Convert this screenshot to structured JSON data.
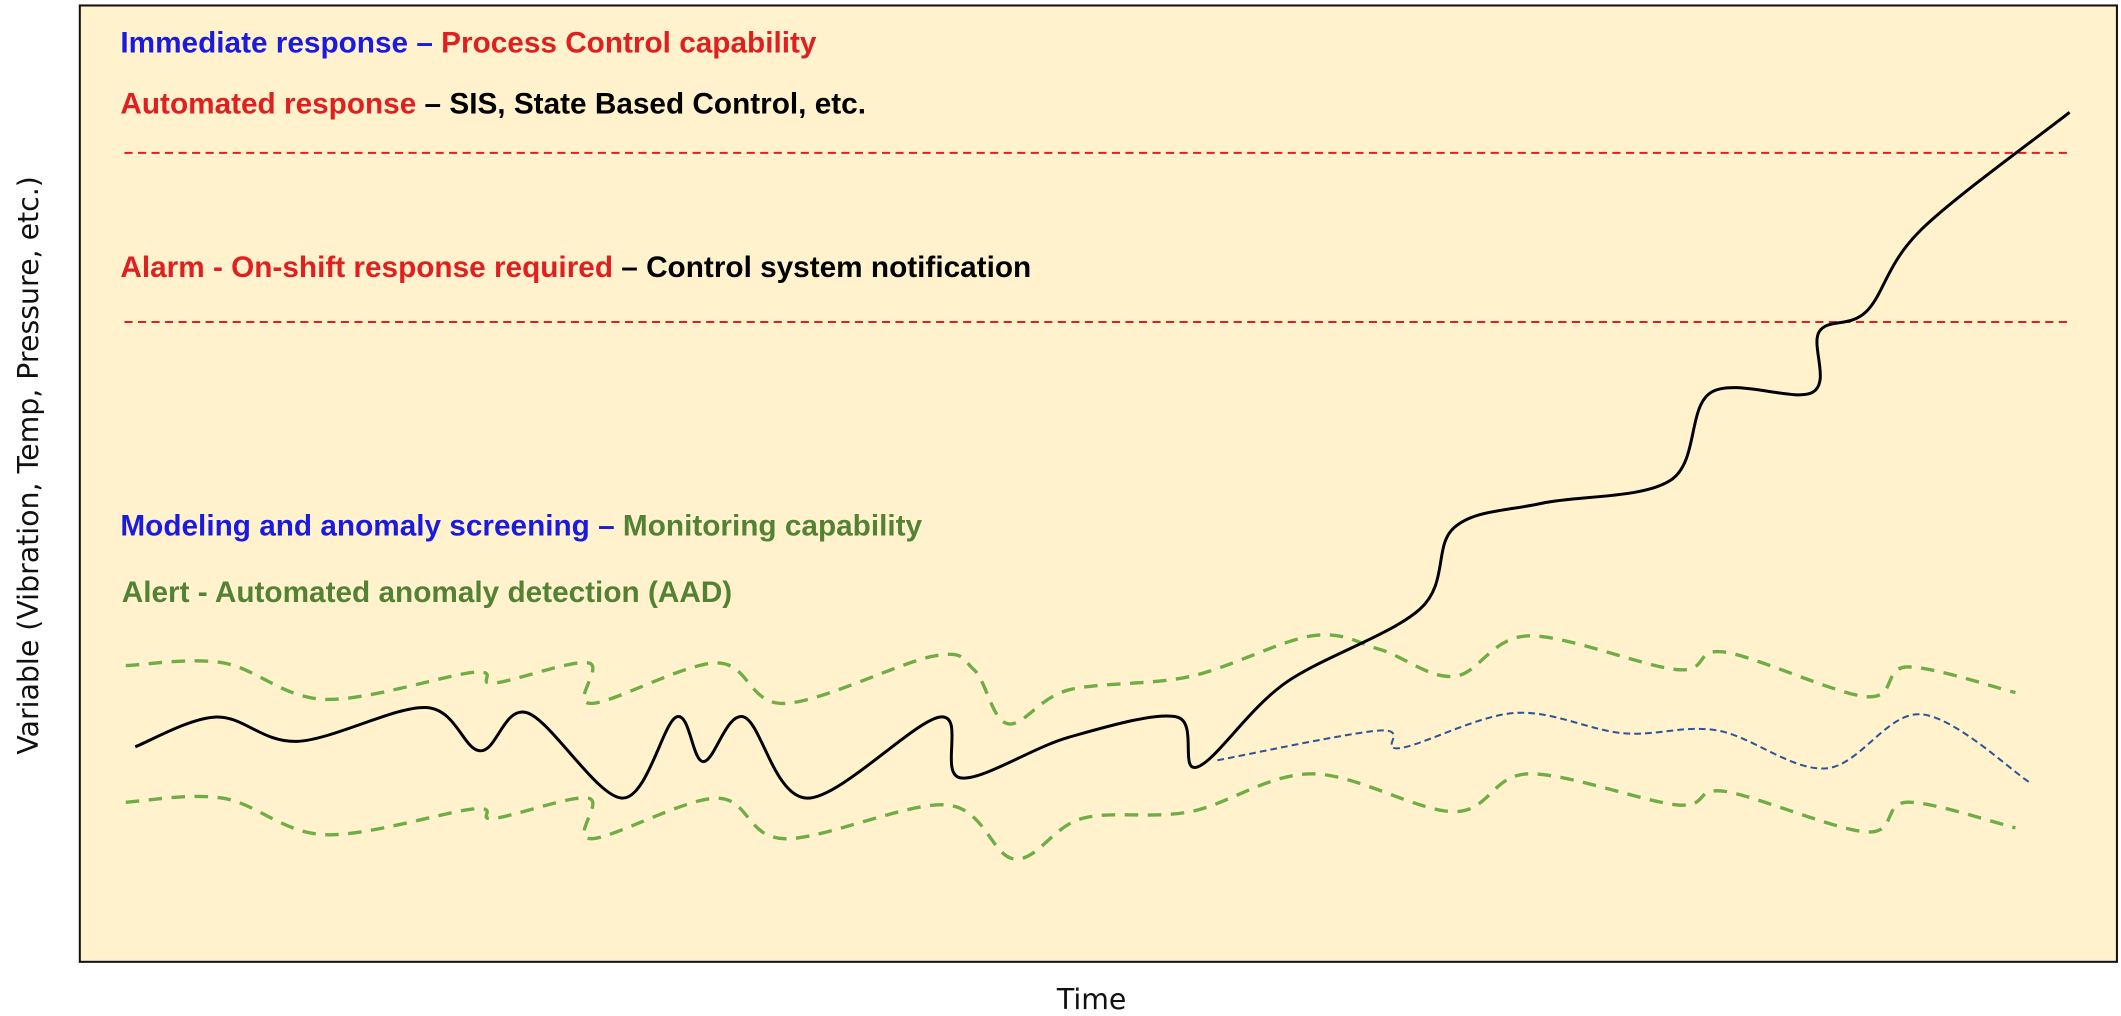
{
  "zones": [
    {
      "parts": [
        "Immediate response –",
        " Process Control capability"
      ]
    },
    {
      "parts": [
        "Automated response",
        " – SIS, State Based Control, etc."
      ]
    },
    {
      "parts": [
        "Alarm - On-shift response required",
        " – Control system notification"
      ]
    },
    {
      "parts": [
        "Modeling and anomaly screening –",
        " Monitoring capability"
      ]
    },
    {
      "parts": [
        "Alert - Automated anomaly detection (AAD)"
      ]
    }
  ],
  "y_axis_label": "Variable (Vibration, Temp, Pressure, etc.)",
  "x_axis_label": "Time"
}
